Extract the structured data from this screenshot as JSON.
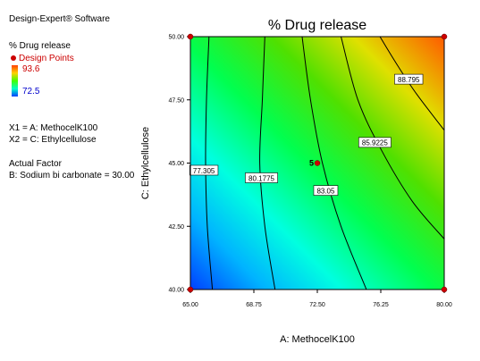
{
  "sidebar": {
    "software": "Design-Expert® Software",
    "response": "% Drug release",
    "legend_points": "Design Points",
    "legend_max": "93.6",
    "legend_min": "72.5",
    "x1": "X1 = A: MethocelK100",
    "x2": "X2 = C: Ethylcellulose",
    "actual_factor_heading": "Actual Factor",
    "actual_factor": "B: Sodium bi carbonate = 30.00"
  },
  "colors": {
    "design_point": "#cc0000",
    "sidebar_red_text": "#cc0000",
    "gradient_low": "#0040ff",
    "gradient_high": "#ff4000"
  },
  "chart_data": {
    "type": "contour",
    "title": "% Drug release",
    "xlabel": "A: MethocelK100",
    "ylabel": "C: Ethylcellulose",
    "xlim": [
      65.0,
      80.0
    ],
    "ylim": [
      40.0,
      50.0
    ],
    "x_ticks": [
      "65.00",
      "68.75",
      "72.50",
      "76.25",
      "80.00"
    ],
    "y_ticks": [
      "40.00",
      "42.50",
      "45.00",
      "47.50",
      "50.00"
    ],
    "value_range": [
      72.5,
      93.6
    ],
    "contours": [
      {
        "label": "77.305",
        "label_at": [
          65.8,
          44.7
        ],
        "points": [
          [
            66.1,
            50.0
          ],
          [
            65.95,
            47.5
          ],
          [
            65.9,
            45.0
          ],
          [
            66.0,
            42.5
          ],
          [
            66.3,
            40.0
          ]
        ]
      },
      {
        "label": "80.1775",
        "label_at": [
          69.2,
          44.4
        ],
        "points": [
          [
            69.4,
            50.0
          ],
          [
            69.25,
            47.5
          ],
          [
            69.1,
            45.0
          ],
          [
            69.4,
            42.5
          ],
          [
            70.0,
            40.0
          ]
        ]
      },
      {
        "label": "83.05",
        "label_at": [
          73.0,
          43.9
        ],
        "points": [
          [
            71.6,
            50.0
          ],
          [
            72.1,
            47.5
          ],
          [
            72.8,
            45.0
          ],
          [
            73.9,
            42.5
          ],
          [
            75.4,
            40.0
          ]
        ]
      },
      {
        "label": "85.9225",
        "label_at": [
          75.9,
          45.8
        ],
        "points": [
          [
            73.9,
            50.0
          ],
          [
            74.9,
            47.5
          ],
          [
            76.3,
            45.5
          ],
          [
            78.1,
            43.5
          ],
          [
            80.0,
            42.0
          ]
        ]
      },
      {
        "label": "88.795",
        "label_at": [
          77.9,
          48.3
        ],
        "points": [
          [
            76.2,
            50.0
          ],
          [
            77.3,
            48.8
          ],
          [
            78.4,
            47.7
          ],
          [
            80.0,
            46.3
          ]
        ]
      }
    ],
    "design_points": [
      {
        "x": 65.0,
        "y": 50.0
      },
      {
        "x": 80.0,
        "y": 50.0
      },
      {
        "x": 65.0,
        "y": 40.0
      },
      {
        "x": 80.0,
        "y": 40.0
      },
      {
        "x": 72.5,
        "y": 45.0,
        "label": "5"
      }
    ]
  }
}
